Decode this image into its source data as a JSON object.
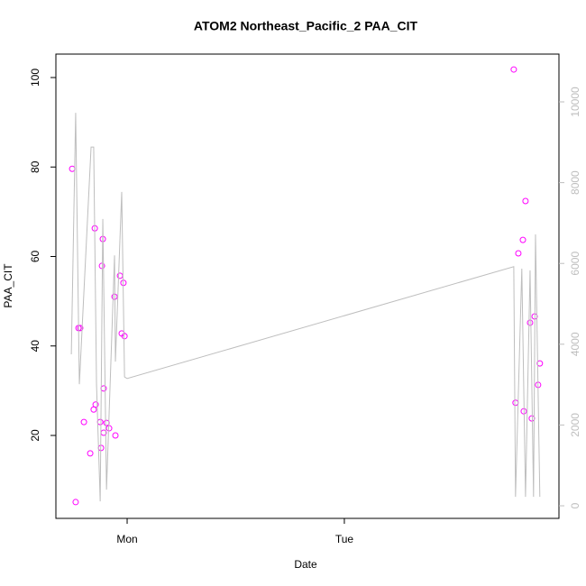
{
  "chart_data": {
    "type": "scatter",
    "title": "ATOM2 Northeast_Pacific_2 PAA_CIT",
    "x_label": "Date",
    "y_label": "PAA_CIT",
    "xlim": [
      -0.328,
      1.988
    ],
    "xticks": [
      {
        "value": 0,
        "label": "Mon"
      },
      {
        "value": 1,
        "label": "Tue"
      }
    ],
    "ylim": [
      1.46,
      105.24
    ],
    "yticks": [
      20,
      40,
      60,
      80,
      100
    ],
    "y2lim": [
      -312,
      11183
    ],
    "y2ticks": [
      0,
      2000,
      4000,
      6000,
      8000,
      10000
    ],
    "series": [
      {
        "color": "#ff00ff",
        "x": [
          -0.253,
          -0.237,
          -0.224,
          -0.216,
          -0.199,
          -0.17,
          -0.149,
          -0.154,
          -0.145,
          -0.124,
          -0.12,
          -0.116,
          -0.112,
          -0.108,
          -0.108,
          -0.095,
          -0.083,
          -0.058,
          -0.054,
          -0.033,
          -0.025,
          -0.017,
          -0.012,
          1.78,
          1.788,
          1.801,
          1.822,
          1.826,
          1.834,
          1.855,
          1.863,
          1.876,
          1.892,
          1.9
        ],
        "values": [
          79.6,
          5.1,
          44.0,
          44.0,
          23.0,
          16.0,
          66.3,
          25.8,
          26.9,
          23.0,
          17.2,
          57.9,
          63.9,
          20.6,
          30.5,
          22.8,
          21.6,
          51.0,
          20.0,
          55.7,
          42.8,
          54.1,
          42.2,
          101.8,
          27.3,
          60.7,
          63.7,
          25.4,
          72.4,
          45.2,
          23.8,
          46.6,
          31.3,
          36.1
        ]
      },
      {
        "color": "#bebebe",
        "axis": "y2",
        "x": [
          -0.257,
          -0.237,
          -0.22,
          -0.166,
          -0.154,
          -0.141,
          -0.124,
          -0.112,
          -0.095,
          -0.058,
          -0.054,
          -0.025,
          -0.012,
          0.0,
          1.78,
          1.788,
          1.817,
          1.834,
          1.855,
          1.871,
          1.88,
          1.9
        ],
        "values": [
          3750,
          9730,
          3010,
          8880,
          8880,
          3010,
          110,
          7100,
          400,
          6200,
          3570,
          7770,
          3190,
          3150,
          5920,
          220,
          5870,
          220,
          5830,
          220,
          6720,
          220
        ]
      }
    ]
  }
}
